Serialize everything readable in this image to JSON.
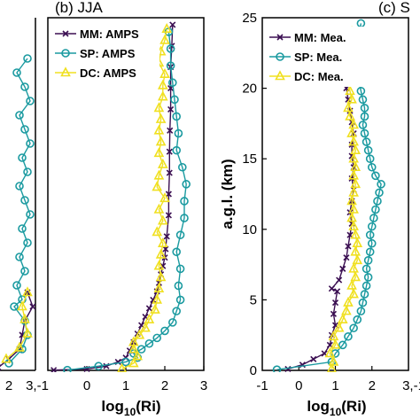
{
  "chart_data": [
    {
      "type": "line",
      "title": "",
      "xlabel": "",
      "ylabel": "",
      "xticks": [
        "2",
        "3,-1"
      ],
      "series": [
        {
          "name": "MM",
          "color": "#3b0f52",
          "marker": "x",
          "points": [
            [
              0.6,
              0.2
            ],
            [
              1.0,
              0.8
            ],
            [
              1.4,
              1.5
            ],
            [
              1.5,
              2.5
            ],
            [
              1.6,
              3.5
            ],
            [
              1.9,
              4.5
            ],
            [
              1.7,
              5.5
            ]
          ]
        },
        {
          "name": "SP",
          "color": "#1a9aa0",
          "marker": "circle",
          "points": [
            [
              1.0,
              0.5
            ],
            [
              1.5,
              1.5
            ],
            [
              1.7,
              2.5
            ],
            [
              1.6,
              3.5
            ],
            [
              1.2,
              4.5
            ],
            [
              1.5,
              5.0
            ],
            [
              1.3,
              6.0
            ],
            [
              1.6,
              7.0
            ],
            [
              1.4,
              8.0
            ],
            [
              1.7,
              9.0
            ],
            [
              1.5,
              10.0
            ],
            [
              1.8,
              11.0
            ],
            [
              1.6,
              12.0
            ],
            [
              1.4,
              13.0
            ],
            [
              1.7,
              14.0
            ],
            [
              1.5,
              15.0
            ],
            [
              1.8,
              16.0
            ],
            [
              1.6,
              17.0
            ],
            [
              1.4,
              18.0
            ],
            [
              1.8,
              19.0
            ],
            [
              1.6,
              20.0
            ],
            [
              1.3,
              21.0
            ],
            [
              1.7,
              22.0
            ]
          ]
        },
        {
          "name": "DC",
          "color": "#f0e020",
          "marker": "triangle",
          "points": [
            [
              0.9,
              0.8
            ],
            [
              1.4,
              1.6
            ],
            [
              1.7,
              2.6
            ],
            [
              1.6,
              3.6
            ],
            [
              1.5,
              4.5
            ],
            [
              1.7,
              5.5
            ]
          ]
        }
      ]
    },
    {
      "type": "line",
      "panel_label": "(b) JJA",
      "xlabel_main": "log",
      "xlabel_sub": "10",
      "xlabel_rest": "(Ri)",
      "xlim": [
        -1,
        3
      ],
      "ylim": [
        0,
        25
      ],
      "xticks": [
        "0",
        "1",
        "2",
        "3"
      ],
      "grid": false,
      "legend_position": "top-left",
      "series": [
        {
          "name": "MM: AMPS",
          "color": "#3b0f52",
          "marker": "x",
          "points": [
            [
              -0.85,
              0.02
            ],
            [
              0.0,
              0.1
            ],
            [
              0.5,
              0.3
            ],
            [
              0.8,
              0.6
            ],
            [
              1.0,
              0.9
            ],
            [
              1.1,
              1.4
            ],
            [
              1.2,
              2.0
            ],
            [
              1.3,
              2.6
            ],
            [
              1.4,
              3.2
            ],
            [
              1.5,
              3.8
            ],
            [
              1.6,
              4.4
            ],
            [
              1.7,
              5.0
            ],
            [
              1.8,
              5.6
            ],
            [
              1.85,
              6.2
            ],
            [
              1.9,
              6.8
            ],
            [
              1.95,
              7.4
            ],
            [
              2.0,
              8.0
            ],
            [
              2.02,
              8.6
            ],
            [
              2.05,
              9.5
            ],
            [
              2.1,
              11
            ],
            [
              2.1,
              12.5
            ],
            [
              2.12,
              14
            ],
            [
              2.12,
              15.5
            ],
            [
              2.13,
              17
            ],
            [
              2.15,
              18.5
            ],
            [
              2.15,
              20
            ],
            [
              2.15,
              21.5
            ],
            [
              2.18,
              23
            ],
            [
              2.2,
              24.5
            ]
          ]
        },
        {
          "name": "SP: AMPS",
          "color": "#1a9aa0",
          "marker": "circle",
          "points": [
            [
              -0.5,
              0.02
            ],
            [
              0.3,
              0.3
            ],
            [
              1.0,
              0.6
            ],
            [
              1.3,
              0.9
            ],
            [
              1.2,
              1.2
            ],
            [
              1.4,
              1.5
            ],
            [
              1.6,
              1.9
            ],
            [
              1.8,
              2.3
            ],
            [
              2.0,
              2.8
            ],
            [
              2.2,
              3.4
            ],
            [
              2.3,
              4.2
            ],
            [
              2.4,
              5.0
            ],
            [
              2.35,
              6.0
            ],
            [
              2.4,
              7.2
            ],
            [
              2.3,
              8.4
            ],
            [
              2.4,
              9.6
            ],
            [
              2.5,
              10.8
            ],
            [
              2.5,
              12.0
            ],
            [
              2.55,
              13.2
            ],
            [
              2.45,
              14.4
            ],
            [
              2.3,
              15.6
            ],
            [
              2.35,
              16.8
            ],
            [
              2.3,
              18.0
            ],
            [
              2.25,
              19.2
            ],
            [
              2.2,
              20.4
            ],
            [
              2.15,
              21.6
            ],
            [
              2.15,
              22.8
            ],
            [
              2.1,
              24.0
            ]
          ]
        },
        {
          "name": "DC: AMPS",
          "color": "#f0e020",
          "marker": "triangle",
          "points": [
            [
              0.9,
              0.1
            ],
            [
              1.2,
              0.5
            ],
            [
              1.3,
              1.0
            ],
            [
              1.2,
              1.5
            ],
            [
              1.2,
              2.0
            ],
            [
              1.35,
              2.5
            ],
            [
              1.5,
              3.0
            ],
            [
              1.6,
              3.6
            ],
            [
              1.75,
              4.3
            ],
            [
              1.8,
              5.0
            ],
            [
              1.85,
              5.8
            ],
            [
              1.9,
              6.6
            ],
            [
              1.85,
              7.4
            ],
            [
              1.9,
              8.2
            ],
            [
              1.95,
              9.0
            ],
            [
              1.8,
              9.8
            ],
            [
              1.95,
              10.6
            ],
            [
              1.85,
              11.4
            ],
            [
              2.0,
              12.2
            ],
            [
              1.8,
              13.0
            ],
            [
              1.85,
              13.8
            ],
            [
              1.95,
              14.6
            ],
            [
              1.85,
              15.4
            ],
            [
              1.9,
              16.2
            ],
            [
              1.85,
              17.0
            ],
            [
              1.9,
              17.8
            ],
            [
              1.85,
              18.6
            ],
            [
              1.95,
              19.4
            ],
            [
              1.95,
              20.2
            ],
            [
              2.0,
              21.0
            ],
            [
              1.85,
              21.8
            ],
            [
              1.9,
              22.6
            ],
            [
              2.0,
              23.4
            ],
            [
              2.05,
              24.2
            ]
          ]
        }
      ]
    },
    {
      "type": "line",
      "panel_label": "(c) S",
      "xlabel_main": "log",
      "xlabel_sub": "10",
      "xlabel_rest": "(Ri)",
      "ylabel": "a.g.l. (km)",
      "xlim": [
        -1,
        3
      ],
      "ylim": [
        0,
        25
      ],
      "xticks": [
        "-1",
        "0",
        "1",
        "2",
        "3,-1"
      ],
      "yticks": [
        "0",
        "5",
        "10",
        "15",
        "20",
        "25"
      ],
      "grid": false,
      "legend_position": "top-left",
      "series": [
        {
          "name": "MM: Mea.",
          "color": "#3b0f52",
          "marker": "x",
          "points": [
            [
              -0.3,
              0.1
            ],
            [
              0.1,
              0.4
            ],
            [
              0.4,
              0.8
            ],
            [
              0.7,
              1.2
            ],
            [
              0.85,
              1.8
            ],
            [
              0.9,
              2.5
            ],
            [
              1.0,
              3.2
            ],
            [
              0.95,
              4.0
            ],
            [
              1.0,
              4.8
            ],
            [
              1.05,
              5.6
            ],
            [
              0.9,
              5.8
            ],
            [
              1.1,
              6.4
            ],
            [
              1.2,
              7.2
            ],
            [
              1.3,
              8.0
            ],
            [
              1.35,
              8.8
            ],
            [
              1.4,
              9.6
            ],
            [
              1.45,
              10.4
            ],
            [
              1.4,
              11.2
            ],
            [
              1.45,
              12.0
            ],
            [
              1.5,
              12.8
            ],
            [
              1.45,
              13.6
            ],
            [
              1.5,
              14.4
            ],
            [
              1.45,
              15.2
            ],
            [
              1.45,
              16.0
            ],
            [
              1.5,
              16.8
            ],
            [
              1.45,
              17.6
            ],
            [
              1.4,
              18.4
            ],
            [
              1.35,
              19.2
            ],
            [
              1.3,
              20.0
            ],
            [
              1.35,
              20.8
            ],
            [
              1.4,
              21.6
            ],
            [
              1.45,
              22.4
            ],
            [
              1.5,
              23.2
            ],
            [
              1.55,
              24.0
            ]
          ]
        },
        {
          "name": "SP: Mea.",
          "color": "#1a9aa0",
          "marker": "circle",
          "points": [
            [
              -0.6,
              0.05
            ],
            [
              0.9,
              0.6
            ],
            [
              1.0,
              1.2
            ],
            [
              1.2,
              1.8
            ],
            [
              1.35,
              2.4
            ],
            [
              1.5,
              3.0
            ],
            [
              1.6,
              3.6
            ],
            [
              1.7,
              4.2
            ],
            [
              1.75,
              4.8
            ],
            [
              1.8,
              5.4
            ],
            [
              1.85,
              6.0
            ],
            [
              1.9,
              6.6
            ],
            [
              1.85,
              7.2
            ],
            [
              1.9,
              7.8
            ],
            [
              1.95,
              8.4
            ],
            [
              2.0,
              9.0
            ],
            [
              1.95,
              9.6
            ],
            [
              2.0,
              10.2
            ],
            [
              2.05,
              10.8
            ],
            [
              2.1,
              11.4
            ],
            [
              2.15,
              12.0
            ],
            [
              2.2,
              12.6
            ],
            [
              2.25,
              13.2
            ],
            [
              2.1,
              13.8
            ],
            [
              2.0,
              14.4
            ],
            [
              1.95,
              15.0
            ],
            [
              1.9,
              15.6
            ],
            [
              1.85,
              16.2
            ],
            [
              1.8,
              16.8
            ],
            [
              1.75,
              17.4
            ],
            [
              1.8,
              18.0
            ],
            [
              1.8,
              18.6
            ],
            [
              1.75,
              19.2
            ],
            [
              1.7,
              19.8
            ],
            [
              1.65,
              20.4
            ],
            [
              1.65,
              21.0
            ],
            [
              1.6,
              21.6
            ],
            [
              1.6,
              22.2
            ],
            [
              1.65,
              22.8
            ],
            [
              1.7,
              23.4
            ],
            [
              1.65,
              24.0
            ],
            [
              1.7,
              24.6
            ]
          ]
        },
        {
          "name": "DC: Mea.",
          "color": "#f0e020",
          "marker": "triangle",
          "points": [
            [
              0.9,
              0.1
            ],
            [
              0.95,
              0.6
            ],
            [
              0.85,
              1.2
            ],
            [
              1.0,
              1.8
            ],
            [
              0.95,
              2.4
            ],
            [
              1.1,
              3.0
            ],
            [
              1.2,
              3.6
            ],
            [
              1.3,
              4.2
            ],
            [
              1.35,
              4.8
            ],
            [
              1.5,
              5.4
            ],
            [
              1.45,
              6.0
            ],
            [
              1.55,
              6.6
            ],
            [
              1.5,
              7.2
            ],
            [
              1.6,
              7.8
            ],
            [
              1.55,
              8.4
            ],
            [
              1.6,
              9.0
            ],
            [
              1.55,
              9.6
            ],
            [
              1.5,
              10.2
            ],
            [
              1.45,
              10.8
            ],
            [
              1.5,
              11.4
            ],
            [
              1.45,
              12.0
            ],
            [
              1.5,
              12.6
            ],
            [
              1.55,
              13.2
            ],
            [
              1.5,
              13.8
            ],
            [
              1.55,
              14.4
            ],
            [
              1.5,
              15.0
            ],
            [
              1.55,
              15.6
            ],
            [
              1.5,
              16.2
            ],
            [
              1.45,
              16.8
            ],
            [
              1.5,
              17.4
            ],
            [
              1.4,
              18.0
            ],
            [
              1.35,
              18.6
            ],
            [
              1.45,
              19.2
            ],
            [
              1.4,
              19.8
            ],
            [
              1.35,
              20.4
            ],
            [
              1.45,
              21.0
            ],
            [
              1.4,
              21.6
            ],
            [
              1.45,
              22.2
            ],
            [
              1.5,
              22.8
            ],
            [
              1.5,
              23.4
            ],
            [
              1.45,
              24.0
            ]
          ]
        }
      ]
    },
    {
      "type": "line",
      "panel_label": "(c) S",
      "xticks": [
        "3,-1"
      ]
    }
  ]
}
